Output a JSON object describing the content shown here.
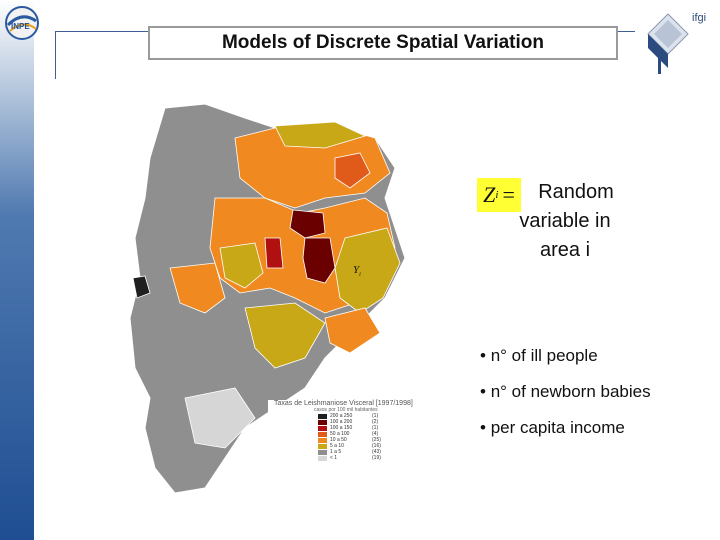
{
  "header": {
    "title": "Models of Discrete Spatial Variation",
    "left_logo": "INPE",
    "right_logo": "ifgi"
  },
  "formula": {
    "lhs": "Z",
    "subscript": "i",
    "equals": "=",
    "map_label": "Y",
    "map_label_subscript": "i"
  },
  "description": "Random variable in area i",
  "bullets": [
    "n° of ill people",
    "n° of newborn babies",
    "per capita income"
  ],
  "legend": {
    "title": "Taxas de Leishmaniose Visceral  [1997/1998]",
    "subtitle": "casos por 100 mil habitantes",
    "rows": [
      {
        "range": "200 a 250",
        "count": "(1)",
        "color": "#1f1f1f"
      },
      {
        "range": "100 a 200",
        "count": "(2)",
        "color": "#6b0000"
      },
      {
        "range": "100 a 150",
        "count": "(1)",
        "color": "#b01010"
      },
      {
        "range": "50 a 100",
        "count": "(4)",
        "color": "#e05a1a"
      },
      {
        "range": "10 a 50",
        "count": "(25)",
        "color": "#f08a20"
      },
      {
        "range": "5 a 10",
        "count": "(16)",
        "color": "#c9a818"
      },
      {
        "range": "1 a 5",
        "count": "(43)",
        "color": "#8f8f8f"
      },
      {
        "range": "< 1",
        "count": "(19)",
        "color": "#d6d6d6"
      }
    ]
  }
}
